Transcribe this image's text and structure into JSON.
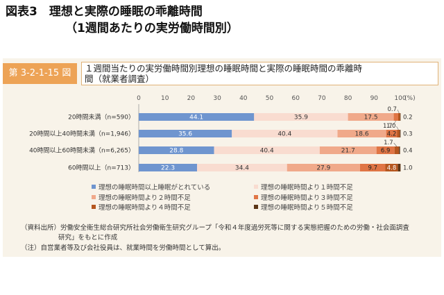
{
  "header": {
    "title": "図表3　理想と実際の睡眠の乖離時間",
    "subtitle": "（1週間あたりの実労働時間別）"
  },
  "figure": {
    "badge": "第 3-2-1-15 図",
    "title_line1": "１週間当たりの実労働時間別理想の睡眠時間と実際の睡眠時間の乖離時",
    "title_line2": "間（就業者調査）"
  },
  "colors": {
    "panel_bg": "#f8f3e9",
    "badge_bg": "#eda356",
    "series": [
      "#6f95cf",
      "#f9dcd0",
      "#f0a98a",
      "#e07545",
      "#b5561f",
      "#5b3517"
    ]
  },
  "chart_data": {
    "type": "bar",
    "orientation": "horizontal",
    "stacked": true,
    "percent_unit": "(%)",
    "xlim": [
      0,
      100
    ],
    "xticks": [
      "0",
      "10",
      "20",
      "30",
      "40",
      "50",
      "60",
      "70",
      "80",
      "90",
      "100"
    ],
    "categories": [
      "20時間未満（n=590）",
      "20時間以上40時間未満（n=1,946）",
      "40時間以上60時間未満（n=6,265）",
      "60時間以上（n=713）"
    ],
    "series": [
      {
        "name": "理想の睡眠時間以上睡眠がとれている",
        "values": [
          44.1,
          35.6,
          28.8,
          22.3
        ],
        "labels": [
          "44.1",
          "35.6",
          "28.8",
          "22.3"
        ]
      },
      {
        "name": "理想の睡眠時間より１時間不足",
        "values": [
          35.9,
          40.4,
          40.4,
          34.4
        ],
        "labels": [
          "35.9",
          "40.4",
          "40.4",
          "34.4"
        ]
      },
      {
        "name": "理想の睡眠時間より２時間不足",
        "values": [
          17.5,
          18.6,
          21.7,
          27.9
        ],
        "labels": [
          "17.5",
          "18.6",
          "21.7",
          "27.9"
        ]
      },
      {
        "name": "理想の睡眠時間より３時間不足",
        "values": [
          1.7,
          4.2,
          6.9,
          9.7
        ],
        "labels": [
          "1.7",
          "4.2",
          "6.9",
          "9.7"
        ]
      },
      {
        "name": "理想の睡眠時間より４時間不足",
        "values": [
          0.7,
          1.0,
          1.7,
          4.8
        ],
        "labels": [
          "0.7",
          "1.0",
          "1.7",
          "4.8"
        ]
      },
      {
        "name": "理想の睡眠時間より５時間不足",
        "values": [
          0.2,
          0.3,
          0.4,
          1.0
        ],
        "labels": [
          "0.2",
          "0.3",
          "0.4",
          "1.0"
        ]
      }
    ],
    "legend_position": "bottom",
    "grid": false
  },
  "notes": {
    "source_line1": "（資料出所）労働安全衛生総合研究所社会労働衛生研究グループ「令和４年度過労死等に関する実態把握のための労働・社会面調査",
    "source_line2": "研究」をもとに作成",
    "note": "（注）自営業者等及び会社役員は、就業時間を労働時間として算出。"
  }
}
